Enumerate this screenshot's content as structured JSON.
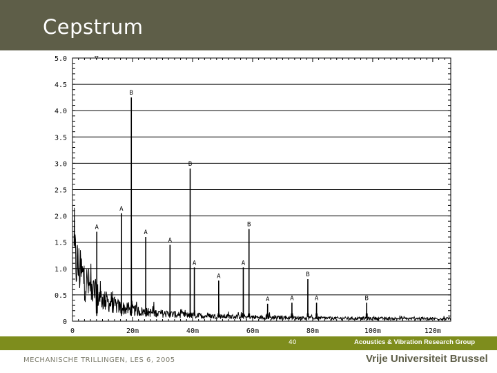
{
  "header": {
    "title": "Cepstrum"
  },
  "footer": {
    "page_number": "40",
    "group": "Acoustics & Vibration Research Group",
    "course": "MECHANISCHE TRILLINGEN, LES 6, 2005",
    "university": "Vrije Universiteit Brussel"
  },
  "colors": {
    "header_bg": "#5e5e48",
    "footer_band": "#7e8d1d",
    "trace": "#000000"
  },
  "chart_data": {
    "type": "line",
    "title": "",
    "xlabel": "",
    "ylabel": "",
    "xlim": [
      0,
      0.126
    ],
    "ylim": [
      0,
      5.0
    ],
    "grid": "horizontal",
    "x_ticks": [
      {
        "value": 0,
        "label": "0"
      },
      {
        "value": 0.02,
        "label": "20m"
      },
      {
        "value": 0.04,
        "label": "40m"
      },
      {
        "value": 0.06,
        "label": "60m"
      },
      {
        "value": 0.08,
        "label": "80m"
      },
      {
        "value": 0.1,
        "label": "100m"
      },
      {
        "value": 0.12,
        "label": "120m"
      }
    ],
    "y_ticks": [
      {
        "value": 0,
        "label": "0"
      },
      {
        "value": 0.5,
        "label": "0.5"
      },
      {
        "value": 1.0,
        "label": "1.0"
      },
      {
        "value": 1.5,
        "label": "1.5"
      },
      {
        "value": 2.0,
        "label": "2.0"
      },
      {
        "value": 2.5,
        "label": "2.5"
      },
      {
        "value": 3.0,
        "label": "3.0"
      },
      {
        "value": 3.5,
        "label": "3.5"
      },
      {
        "value": 4.0,
        "label": "4.0"
      },
      {
        "value": 4.5,
        "label": "4.5"
      },
      {
        "value": 5.0,
        "label": "5.0"
      }
    ],
    "cursor_marker": {
      "label": "▽",
      "x": 0.008
    },
    "peaks": [
      {
        "x": 0.0081,
        "y": 1.7,
        "label": "A"
      },
      {
        "x": 0.0163,
        "y": 2.05,
        "label": "A"
      },
      {
        "x": 0.0196,
        "y": 4.25,
        "label": "B"
      },
      {
        "x": 0.0244,
        "y": 1.6,
        "label": "A"
      },
      {
        "x": 0.0325,
        "y": 1.45,
        "label": "A"
      },
      {
        "x": 0.0392,
        "y": 2.9,
        "label": "B"
      },
      {
        "x": 0.0406,
        "y": 1.02,
        "label": "A"
      },
      {
        "x": 0.0487,
        "y": 0.77,
        "label": "A"
      },
      {
        "x": 0.0569,
        "y": 1.02,
        "label": "A"
      },
      {
        "x": 0.0588,
        "y": 1.75,
        "label": "B"
      },
      {
        "x": 0.065,
        "y": 0.33,
        "label": "A"
      },
      {
        "x": 0.0731,
        "y": 0.35,
        "label": "A"
      },
      {
        "x": 0.0784,
        "y": 0.8,
        "label": "B"
      },
      {
        "x": 0.0813,
        "y": 0.35,
        "label": "A"
      },
      {
        "x": 0.098,
        "y": 0.35,
        "label": "B"
      }
    ]
  }
}
